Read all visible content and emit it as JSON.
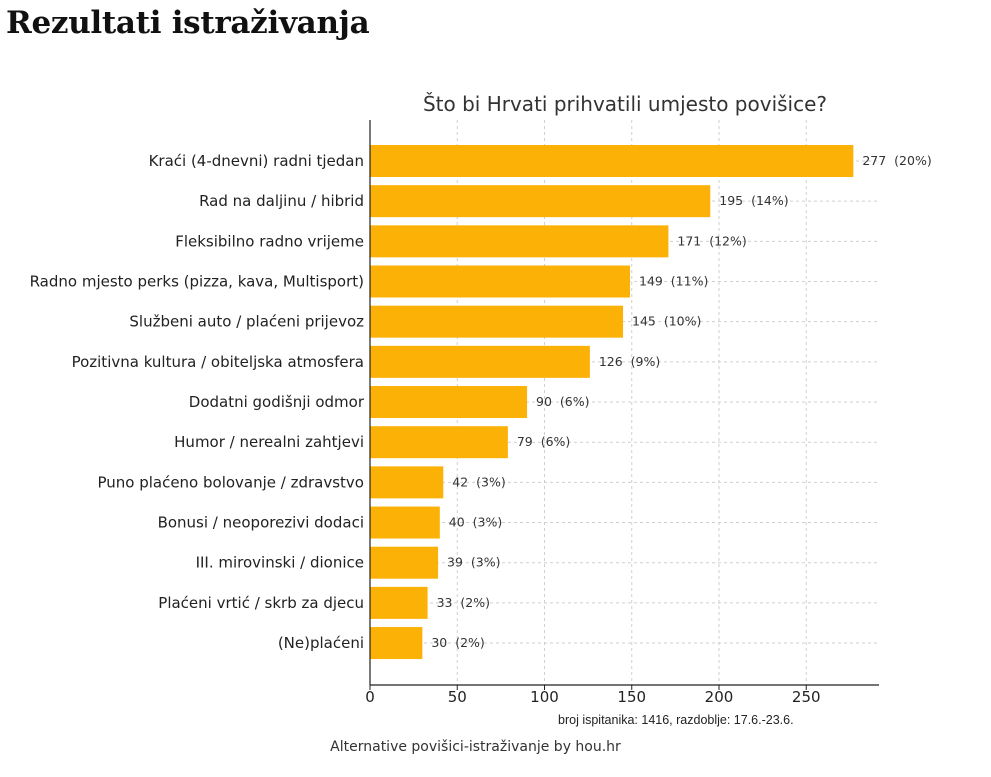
{
  "page": {
    "heading": "Rezultati istraživanja",
    "caption": "Alternative povišici-istraživanje by hou.hr"
  },
  "colors": {
    "bar": "#FBB106",
    "grid": "#cfcfcf",
    "axis": "#222222"
  },
  "chart_data": {
    "type": "bar",
    "orientation": "horizontal",
    "title": "Što bi Hrvati prihvatili umjesto povišice?",
    "xlabel": "",
    "ylabel": "",
    "xlim": [
      0,
      290
    ],
    "xticks": [
      0,
      50,
      100,
      150,
      200,
      250
    ],
    "grid": true,
    "footnote": "broj ispitanika: 1416, razdoblje: 17.6.-23.6.",
    "categories": [
      "Kraći (4-dnevni) radni tjedan",
      "Rad na daljinu / hibrid",
      "Fleksibilno radno vrijeme",
      "Radno mjesto perks (pizza, kava, Multisport)",
      "Službeni auto / plaćeni prijevoz",
      "Pozitivna kultura / obiteljska atmosfera",
      "Dodatni godišnji odmor",
      "Humor / nerealni zahtjevi",
      "Puno plaćeno bolovanje / zdravstvo",
      "Bonusi / neoporezivi dodaci",
      "III. mirovinski / dionice",
      "Plaćeni vrtić / skrb za djecu",
      "(Ne)plaćeni"
    ],
    "values": [
      277,
      195,
      171,
      149,
      145,
      126,
      90,
      79,
      42,
      40,
      39,
      33,
      30
    ],
    "labels": [
      "277  (20%)",
      "195  (14%)",
      "171  (12%)",
      "149  (11%)",
      "145  (10%)",
      "126  (9%)",
      "90  (6%)",
      "79  (6%)",
      "42  (3%)",
      "40  (3%)",
      "39  (3%)",
      "33  (2%)",
      "30  (2%)"
    ]
  }
}
